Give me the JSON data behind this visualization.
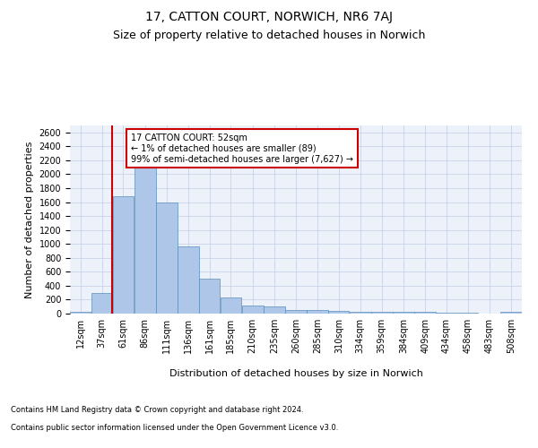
{
  "title_line1": "17, CATTON COURT, NORWICH, NR6 7AJ",
  "title_line2": "Size of property relative to detached houses in Norwich",
  "xlabel": "Distribution of detached houses by size in Norwich",
  "ylabel": "Number of detached properties",
  "annotation_text": "17 CATTON COURT: 52sqm\n← 1% of detached houses are smaller (89)\n99% of semi-detached houses are larger (7,627) →",
  "bar_labels": [
    "12sqm",
    "37sqm",
    "61sqm",
    "86sqm",
    "111sqm",
    "136sqm",
    "161sqm",
    "185sqm",
    "210sqm",
    "235sqm",
    "260sqm",
    "285sqm",
    "310sqm",
    "334sqm",
    "359sqm",
    "384sqm",
    "409sqm",
    "434sqm",
    "458sqm",
    "483sqm",
    "508sqm"
  ],
  "bin_edges": [
    12,
    37,
    61,
    86,
    111,
    136,
    161,
    185,
    210,
    235,
    260,
    285,
    310,
    334,
    359,
    384,
    409,
    434,
    458,
    483,
    508,
    533
  ],
  "bar_heights": [
    25,
    300,
    1680,
    2140,
    1600,
    960,
    500,
    235,
    120,
    100,
    50,
    50,
    35,
    30,
    20,
    20,
    20,
    15,
    15,
    5,
    25
  ],
  "bar_color": "#aec6e8",
  "bar_edge_color": "#5b8db8",
  "vline_color": "#cc0000",
  "vline_x": 61,
  "ylim": [
    0,
    2700
  ],
  "yticks": [
    0,
    200,
    400,
    600,
    800,
    1000,
    1200,
    1400,
    1600,
    1800,
    2000,
    2200,
    2400,
    2600
  ],
  "annotation_box_color": "#cc0000",
  "annotation_bg": "#ffffff",
  "footer_line1": "Contains HM Land Registry data © Crown copyright and database right 2024.",
  "footer_line2": "Contains public sector information licensed under the Open Government Licence v3.0.",
  "bg_color": "#edf2fa",
  "grid_color": "#c8d4e8",
  "title1_fontsize": 10,
  "title2_fontsize": 9,
  "ylabel_fontsize": 8,
  "xlabel_fontsize": 8,
  "tick_fontsize": 7,
  "annot_fontsize": 7,
  "footer_fontsize": 6
}
